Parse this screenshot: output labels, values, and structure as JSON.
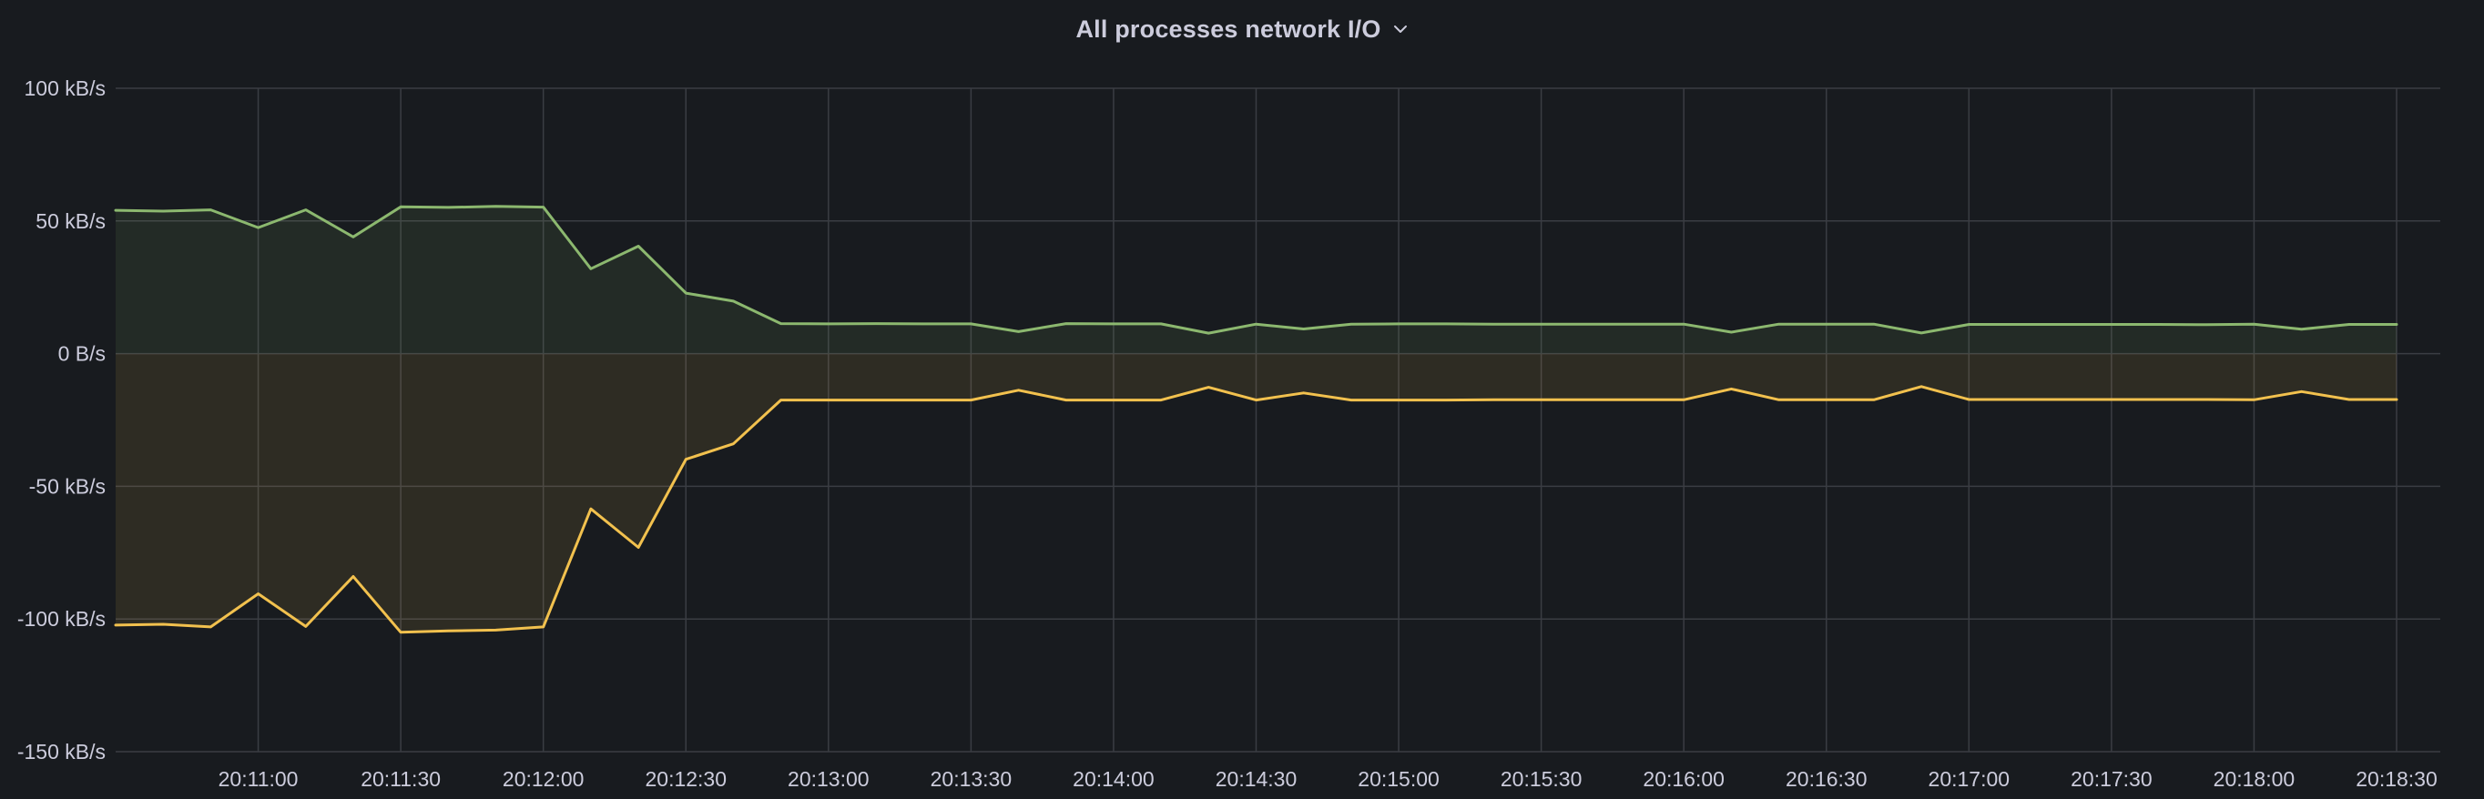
{
  "panel": {
    "title": "All processes network I/O",
    "menu_icon": "chevron-down-icon"
  },
  "colors": {
    "background": "#181b1f",
    "grid": "#3a3d43",
    "text": "#ccccdc",
    "series_up": "#8cb86f",
    "series_down": "#f2c14e"
  },
  "chart_data": {
    "type": "area",
    "title": "All processes network I/O",
    "xlabel": "",
    "ylabel": "",
    "ylim": [
      -150,
      100
    ],
    "yunit": "kB/s",
    "yticks": [
      {
        "value": 100,
        "label": "100 kB/s"
      },
      {
        "value": 50,
        "label": "50 kB/s"
      },
      {
        "value": 0,
        "label": "0 B/s"
      },
      {
        "value": -50,
        "label": "-50 kB/s"
      },
      {
        "value": -100,
        "label": "-100 kB/s"
      },
      {
        "value": -150,
        "label": "-150 kB/s"
      }
    ],
    "xlim": [
      "20:10:30",
      "20:18:30"
    ],
    "xticks": [
      "20:11:00",
      "20:11:30",
      "20:12:00",
      "20:12:30",
      "20:13:00",
      "20:13:30",
      "20:14:00",
      "20:14:30",
      "20:15:00",
      "20:15:30",
      "20:16:00",
      "20:16:30",
      "20:17:00",
      "20:17:30",
      "20:18:00",
      "20:18:30"
    ],
    "x": [
      "20:10:30",
      "20:10:40",
      "20:10:50",
      "20:11:00",
      "20:11:10",
      "20:11:20",
      "20:11:30",
      "20:11:40",
      "20:11:50",
      "20:12:00",
      "20:12:10",
      "20:12:20",
      "20:12:30",
      "20:12:40",
      "20:12:50",
      "20:13:00",
      "20:13:10",
      "20:13:20",
      "20:13:30",
      "20:13:40",
      "20:13:50",
      "20:14:00",
      "20:14:10",
      "20:14:20",
      "20:14:30",
      "20:14:40",
      "20:14:50",
      "20:15:00",
      "20:15:10",
      "20:15:20",
      "20:15:30",
      "20:15:40",
      "20:15:50",
      "20:16:00",
      "20:16:10",
      "20:16:20",
      "20:16:30",
      "20:16:40",
      "20:16:50",
      "20:17:00",
      "20:17:10",
      "20:17:20",
      "20:17:30",
      "20:17:40",
      "20:17:50",
      "20:18:00",
      "20:18:10",
      "20:18:20",
      "20:18:30"
    ],
    "series": [
      {
        "name": "",
        "color": "#8cb86f",
        "values": [
          54,
          53.7,
          54.2,
          47.5,
          54.2,
          44,
          55.3,
          55.1,
          55.5,
          55.2,
          32,
          40.5,
          22.8,
          19.8,
          11.3,
          11.2,
          11.3,
          11.2,
          11.2,
          8.3,
          11.3,
          11.2,
          11.2,
          7.7,
          11.1,
          9.3,
          11.1,
          11.2,
          11.2,
          11.1,
          11.1,
          11.1,
          11.1,
          11.1,
          8.1,
          11.1,
          11.1,
          11.1,
          7.8,
          11,
          11,
          11,
          11,
          11,
          10.9,
          11.1,
          9.2,
          11,
          11
        ]
      },
      {
        "name": "",
        "color": "#f2c14e",
        "values": [
          -102.3,
          -102,
          -103,
          -90.5,
          -102.8,
          -84,
          -105,
          -104.5,
          -104.2,
          -103,
          -58.5,
          -73,
          -39.8,
          -34,
          -17.5,
          -17.5,
          -17.5,
          -17.5,
          -17.5,
          -13.8,
          -17.5,
          -17.5,
          -17.5,
          -12.7,
          -17.5,
          -14.8,
          -17.5,
          -17.5,
          -17.5,
          -17.4,
          -17.4,
          -17.4,
          -17.4,
          -17.4,
          -13.3,
          -17.4,
          -17.4,
          -17.4,
          -12.4,
          -17.3,
          -17.3,
          -17.3,
          -17.3,
          -17.3,
          -17.3,
          -17.4,
          -14.3,
          -17.3,
          -17.3
        ]
      }
    ],
    "grid": true,
    "legend": "none"
  }
}
